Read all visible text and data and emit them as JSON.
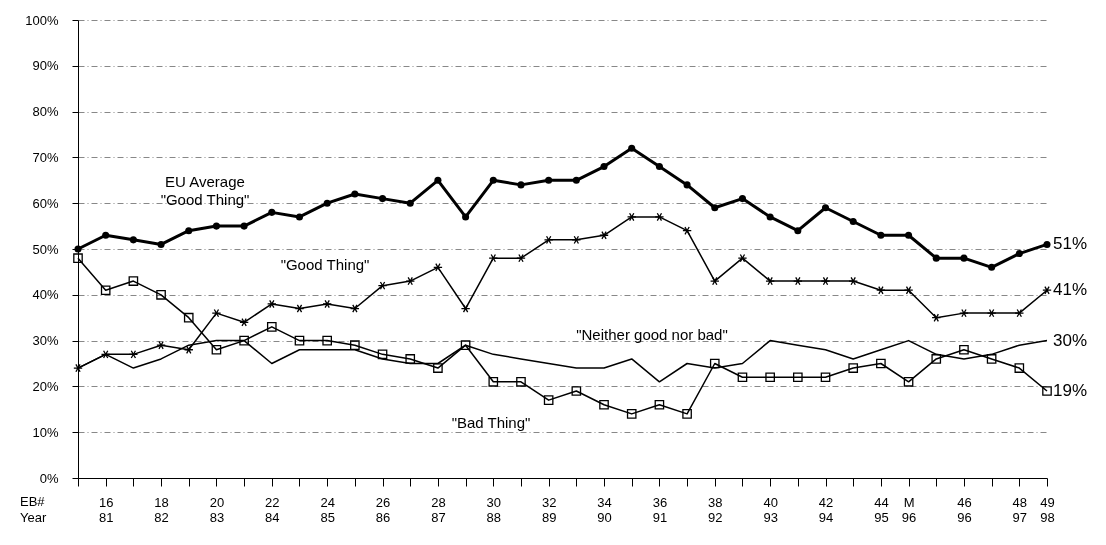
{
  "chart_data": {
    "type": "line",
    "categories": [
      null,
      "16\n81",
      null,
      "18\n82",
      null,
      "20\n83",
      null,
      "22\n84",
      null,
      "24\n85",
      null,
      "26\n86",
      null,
      "28\n87",
      null,
      "30\n88",
      null,
      "32\n89",
      null,
      "34\n90",
      null,
      "36\n91",
      null,
      "38\n92",
      null,
      "40\n93",
      null,
      "42\n94",
      null,
      "44\n95",
      "M\n96",
      null,
      "46\n96",
      null,
      "48\n97",
      "49\n98"
    ],
    "series": [
      {
        "color": "#000000",
        "marker": "circle",
        "values": [
          50,
          53,
          52,
          51,
          54,
          55,
          55,
          58,
          57,
          60,
          62,
          61,
          60,
          65,
          57,
          65,
          64,
          65,
          65,
          68,
          72,
          68,
          64,
          59,
          61,
          57,
          54,
          59,
          56,
          53,
          53,
          48,
          48,
          46,
          49,
          51
        ],
        "value_labels": [
          null,
          null,
          null,
          null,
          null,
          null,
          null,
          null,
          null,
          null,
          null,
          null,
          null,
          null,
          null,
          null,
          null,
          null,
          null,
          null,
          null,
          null,
          null,
          null,
          null,
          null,
          null,
          null,
          null,
          null,
          null,
          null,
          null,
          null,
          null,
          "51%"
        ]
      },
      {
        "color": "#000000",
        "marker": "cross",
        "values": [
          24,
          27,
          27,
          29,
          28,
          36,
          34,
          38,
          37,
          38,
          37,
          42,
          43,
          46,
          37,
          48,
          48,
          52,
          52,
          53,
          57,
          57,
          54,
          43,
          48,
          43,
          43,
          43,
          43,
          41,
          41,
          35,
          36,
          36,
          36,
          41
        ],
        "value_labels": [
          null,
          null,
          null,
          null,
          null,
          null,
          null,
          null,
          null,
          null,
          null,
          null,
          null,
          null,
          null,
          null,
          null,
          null,
          null,
          null,
          null,
          null,
          null,
          null,
          null,
          null,
          null,
          null,
          null,
          null,
          null,
          null,
          null,
          null,
          null,
          "41%"
        ]
      },
      {
        "color": "#000000",
        "marker": "none",
        "values": [
          24,
          27,
          24,
          26,
          29,
          30,
          30,
          25,
          28,
          28,
          28,
          26,
          25,
          25,
          29,
          27,
          26,
          25,
          24,
          24,
          26,
          21,
          25,
          24,
          25,
          30,
          29,
          28,
          26,
          28,
          30,
          27,
          26,
          27,
          29,
          30
        ],
        "value_labels": [
          null,
          null,
          null,
          null,
          null,
          null,
          null,
          null,
          null,
          null,
          null,
          null,
          null,
          null,
          null,
          null,
          null,
          null,
          null,
          null,
          null,
          null,
          null,
          null,
          null,
          null,
          null,
          null,
          null,
          null,
          null,
          null,
          null,
          null,
          null,
          "30%"
        ]
      },
      {
        "color": "#000000",
        "marker": "square",
        "values": [
          48,
          41,
          43,
          40,
          35,
          28,
          30,
          33,
          30,
          30,
          29,
          27,
          26,
          24,
          29,
          21,
          21,
          17,
          19,
          16,
          14,
          16,
          14,
          25,
          22,
          22,
          22,
          22,
          24,
          25,
          21,
          26,
          28,
          26,
          24,
          19
        ],
        "value_labels": [
          null,
          null,
          null,
          null,
          null,
          null,
          null,
          null,
          null,
          null,
          null,
          null,
          null,
          null,
          null,
          null,
          null,
          null,
          null,
          null,
          null,
          null,
          null,
          null,
          null,
          null,
          null,
          null,
          null,
          null,
          null,
          null,
          null,
          null,
          null,
          "19%"
        ]
      }
    ],
    "ylim": [
      0,
      100
    ],
    "yticks": [
      {
        "value": 0,
        "label": "0%"
      },
      {
        "value": 10,
        "label": "10%"
      },
      {
        "value": 20,
        "label": "20%"
      },
      {
        "value": 30,
        "label": "30%"
      },
      {
        "value": 40,
        "label": "40%"
      },
      {
        "value": 50,
        "label": "50%"
      },
      {
        "value": 60,
        "label": "60%"
      },
      {
        "value": 70,
        "label": "70%"
      },
      {
        "value": 80,
        "label": "80%"
      },
      {
        "value": 90,
        "label": "90%"
      },
      {
        "value": 100,
        "label": "100%"
      }
    ],
    "grid": "y",
    "annotations": [
      "EU Average\n\"Good Thing\"",
      "\"Good Thing\"",
      "\"Neither good nor bad\"",
      "\"Bad Thing\"",
      "EB#",
      "Year"
    ]
  }
}
